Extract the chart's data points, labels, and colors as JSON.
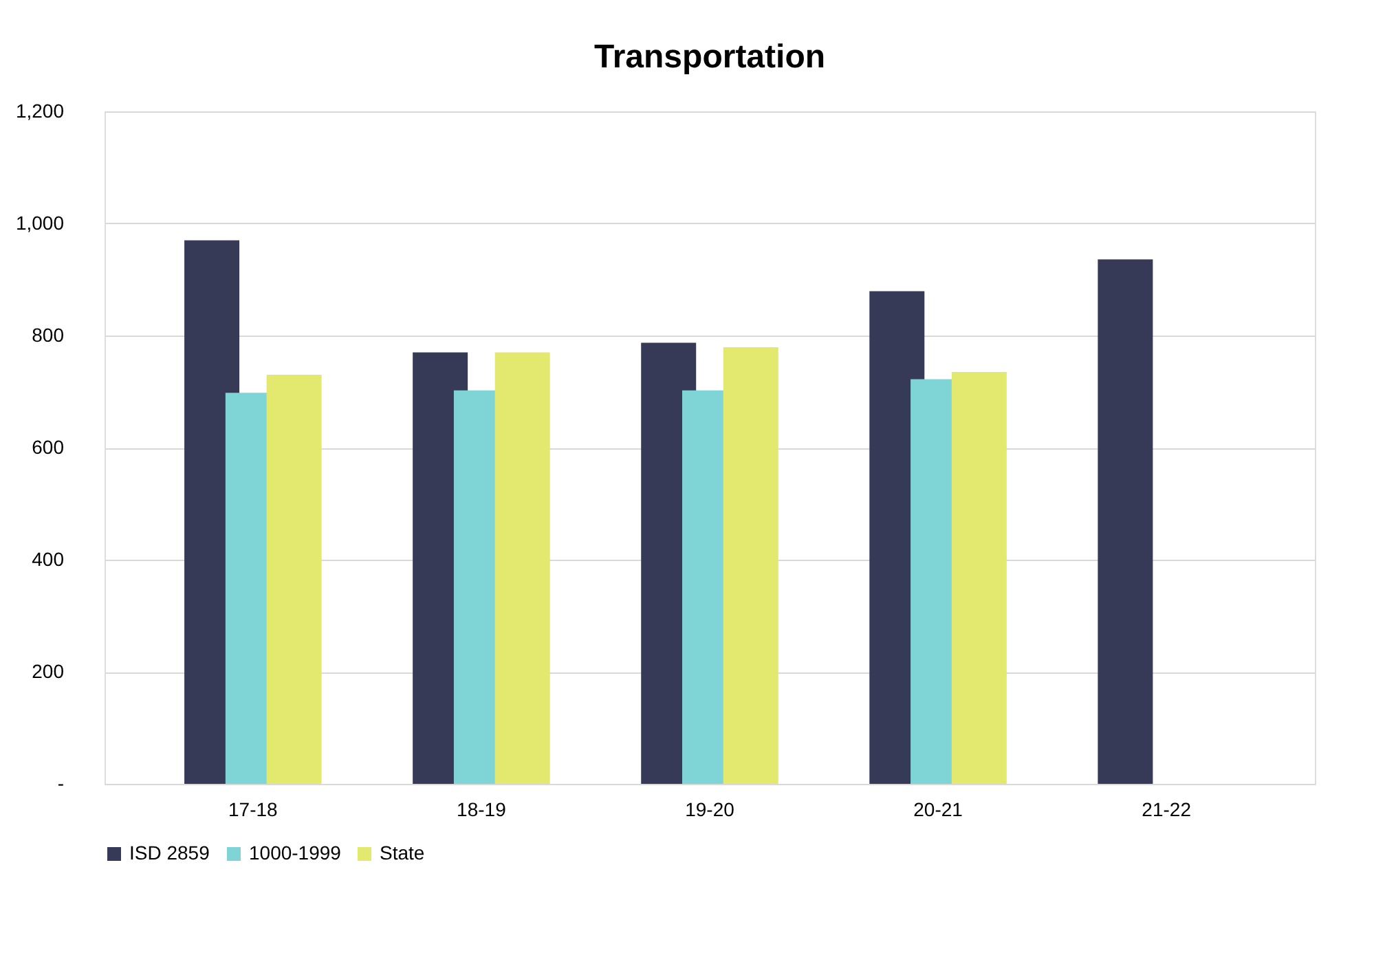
{
  "chart_data": {
    "type": "bar",
    "title": "Transportation",
    "categories": [
      "17-18",
      "18-19",
      "19-20",
      "20-21",
      "21-22"
    ],
    "series": [
      {
        "name": "ISD 2859",
        "color": "#363a57",
        "values": [
          970,
          770,
          787,
          879,
          936
        ]
      },
      {
        "name": "1000-1999",
        "color": "#7fd5d5",
        "values": [
          698,
          702,
          702,
          722,
          null
        ]
      },
      {
        "name": "State",
        "color": "#e3e86e",
        "values": [
          730,
          770,
          779,
          735,
          null
        ]
      }
    ],
    "ylim": [
      0,
      1200
    ],
    "yticks": [
      {
        "value": 0,
        "label": "-"
      },
      200,
      400,
      600,
      800,
      {
        "value": 1000,
        "label": "1,000"
      },
      {
        "value": 1200,
        "label": "1,200"
      }
    ],
    "grid": "y",
    "legend": "bottom"
  }
}
